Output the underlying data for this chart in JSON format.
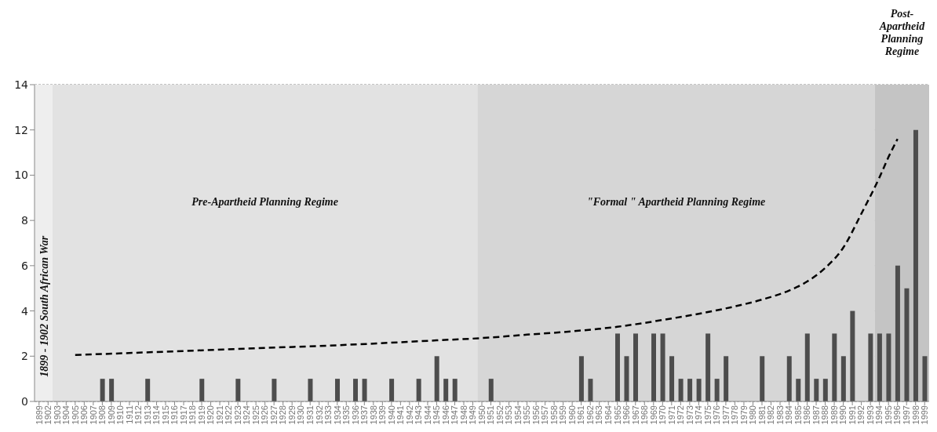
{
  "chart_data": {
    "type": "bar",
    "categories": [
      "1899",
      "1902",
      "1903",
      "1904",
      "1905",
      "1906",
      "1907",
      "1908",
      "1909",
      "1910",
      "1911",
      "1912",
      "1913",
      "1914",
      "1915",
      "1916",
      "1917",
      "1918",
      "1919",
      "1920",
      "1921",
      "1922",
      "1923",
      "1924",
      "1925",
      "1926",
      "1927",
      "1928",
      "1929",
      "1930",
      "1931",
      "1932",
      "1933",
      "1934",
      "1935",
      "1936",
      "1937",
      "1938",
      "1939",
      "1940",
      "1941",
      "1942",
      "1943",
      "1944",
      "1945",
      "1946",
      "1947",
      "1948",
      "1949",
      "1950",
      "1951",
      "1952",
      "1953",
      "1954",
      "1955",
      "1956",
      "1957",
      "1958",
      "1959",
      "1960",
      "1961",
      "1962",
      "1963",
      "1964",
      "1965",
      "1966",
      "1967",
      "1968",
      "1969",
      "1970",
      "1971",
      "1972",
      "1973",
      "1974",
      "1975",
      "1976",
      "1977",
      "1978",
      "1979",
      "1980",
      "1981",
      "1982",
      "1983",
      "1984",
      "1985",
      "1986",
      "1987",
      "1988",
      "1989",
      "1990",
      "1991",
      "1992",
      "1993",
      "1994",
      "1995",
      "1996",
      "1997",
      "1998",
      "1999"
    ],
    "series": [
      {
        "color": "#4d4d4d",
        "values": [
          0,
          0,
          0,
          0,
          0,
          0,
          0,
          1,
          1,
          0,
          0,
          0,
          1,
          0,
          0,
          0,
          0,
          0,
          1,
          0,
          0,
          0,
          1,
          0,
          0,
          0,
          1,
          0,
          0,
          0,
          1,
          0,
          0,
          1,
          0,
          1,
          1,
          0,
          0,
          1,
          0,
          0,
          1,
          0,
          2,
          1,
          1,
          0,
          0,
          0,
          1,
          0,
          0,
          0,
          0,
          0,
          0,
          0,
          0,
          0,
          2,
          1,
          0,
          0,
          3,
          2,
          3,
          0,
          3,
          3,
          2,
          1,
          1,
          1,
          3,
          1,
          2,
          0,
          0,
          0,
          2,
          0,
          0,
          2,
          1,
          3,
          1,
          1,
          3,
          2,
          4,
          0,
          3,
          3,
          3,
          6,
          5,
          12,
          2
        ]
      },
      {
        "type": "line",
        "color": "#000000",
        "line_style": "dashed",
        "values": [
          null,
          null,
          null,
          null,
          2.05,
          null,
          null,
          null,
          null,
          null,
          null,
          null,
          null,
          null,
          2.2,
          null,
          null,
          null,
          null,
          null,
          null,
          null,
          null,
          null,
          2.35,
          null,
          null,
          null,
          null,
          null,
          null,
          null,
          null,
          null,
          2.5,
          null,
          null,
          null,
          null,
          null,
          null,
          null,
          null,
          null,
          2.7,
          null,
          null,
          null,
          null,
          2.8,
          null,
          null,
          null,
          null,
          2.95,
          null,
          null,
          null,
          null,
          3.1,
          null,
          null,
          null,
          null,
          3.3,
          null,
          null,
          null,
          null,
          3.6,
          null,
          null,
          null,
          null,
          3.95,
          null,
          null,
          4.2,
          null,
          null,
          4.5,
          null,
          null,
          4.9,
          null,
          5.3,
          null,
          5.9,
          null,
          6.8,
          null,
          8.3,
          null,
          9.9,
          10.8,
          11.6,
          null,
          null,
          null
        ]
      }
    ],
    "ylim": [
      0,
      14
    ],
    "yticks": [
      0,
      2,
      4,
      6,
      8,
      10,
      12,
      14
    ],
    "grid": "y",
    "legend": false,
    "bands": [
      {
        "axis": "x",
        "from": "1899",
        "to": "1902",
        "label": "1899 - 1902 South African War",
        "color": "#eeeeee"
      },
      {
        "axis": "x",
        "from": "1903",
        "to": "1949",
        "label": "Pre-Apartheid Planning Regime",
        "color": "#e2e2e2"
      },
      {
        "axis": "x",
        "from": "1950",
        "to": "1993",
        "label": "\"Formal \" Apartheid Planning Regime",
        "color": "#d6d6d6"
      },
      {
        "axis": "x",
        "from": "1994",
        "to": "1999",
        "label": "Post-Apartheid Planning Regime",
        "color": "#c4c4c4"
      }
    ]
  }
}
